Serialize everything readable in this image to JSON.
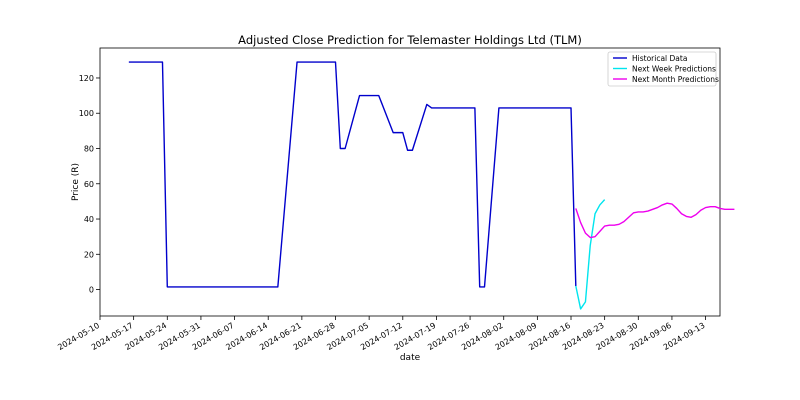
{
  "chart_data": {
    "type": "line",
    "title": "Adjusted Close Prediction for Telemaster Holdings Ltd (TLM)",
    "xlabel": "date",
    "ylabel": "Price (R)",
    "xlim": [
      "2024-05-10",
      "2024-09-16"
    ],
    "ylim": [
      -15,
      137
    ],
    "grid": false,
    "legend_position": "top-right",
    "x_ticks": [
      "2024-05-10",
      "2024-05-17",
      "2024-05-24",
      "2024-05-31",
      "2024-06-07",
      "2024-06-14",
      "2024-06-21",
      "2024-06-28",
      "2024-07-05",
      "2024-07-12",
      "2024-07-19",
      "2024-07-26",
      "2024-08-02",
      "2024-08-09",
      "2024-08-16",
      "2024-08-23",
      "2024-08-30",
      "2024-09-06",
      "2024-09-13"
    ],
    "y_ticks": [
      0,
      20,
      40,
      60,
      80,
      100,
      120
    ],
    "series": [
      {
        "name": "Historical Data",
        "color": "#0000cc",
        "points": [
          {
            "x": "2024-05-16",
            "y": 129
          },
          {
            "x": "2024-05-23",
            "y": 129
          },
          {
            "x": "2024-05-24",
            "y": 1.5
          },
          {
            "x": "2024-06-16",
            "y": 1.5
          },
          {
            "x": "2024-06-20",
            "y": 129
          },
          {
            "x": "2024-06-28",
            "y": 129
          },
          {
            "x": "2024-06-29",
            "y": 80
          },
          {
            "x": "2024-06-30",
            "y": 80
          },
          {
            "x": "2024-07-03",
            "y": 110
          },
          {
            "x": "2024-07-07",
            "y": 110
          },
          {
            "x": "2024-07-10",
            "y": 89
          },
          {
            "x": "2024-07-12",
            "y": 89
          },
          {
            "x": "2024-07-13",
            "y": 79
          },
          {
            "x": "2024-07-14",
            "y": 79
          },
          {
            "x": "2024-07-17",
            "y": 105
          },
          {
            "x": "2024-07-18",
            "y": 103
          },
          {
            "x": "2024-07-27",
            "y": 103
          },
          {
            "x": "2024-07-28",
            "y": 1.5
          },
          {
            "x": "2024-07-29",
            "y": 1.5
          },
          {
            "x": "2024-08-01",
            "y": 103
          },
          {
            "x": "2024-08-16",
            "y": 103
          },
          {
            "x": "2024-08-17",
            "y": 2
          }
        ]
      },
      {
        "name": "Next Week Predictions",
        "color": "#00e5ee",
        "points": [
          {
            "x": "2024-08-17",
            "y": 2
          },
          {
            "x": "2024-08-18",
            "y": -11
          },
          {
            "x": "2024-08-19",
            "y": -7
          },
          {
            "x": "2024-08-20",
            "y": 25
          },
          {
            "x": "2024-08-21",
            "y": 43
          },
          {
            "x": "2024-08-22",
            "y": 48
          },
          {
            "x": "2024-08-23",
            "y": 51
          }
        ]
      },
      {
        "name": "Next Month Predictions",
        "color": "#ee00ee",
        "points": [
          {
            "x": "2024-08-17",
            "y": 46
          },
          {
            "x": "2024-08-18",
            "y": 38
          },
          {
            "x": "2024-08-19",
            "y": 32
          },
          {
            "x": "2024-08-20",
            "y": 29.5
          },
          {
            "x": "2024-08-21",
            "y": 30
          },
          {
            "x": "2024-08-22",
            "y": 33
          },
          {
            "x": "2024-08-23",
            "y": 36
          },
          {
            "x": "2024-08-24",
            "y": 36.5
          },
          {
            "x": "2024-08-25",
            "y": 36.5
          },
          {
            "x": "2024-08-26",
            "y": 37
          },
          {
            "x": "2024-08-27",
            "y": 38.5
          },
          {
            "x": "2024-08-28",
            "y": 41
          },
          {
            "x": "2024-08-29",
            "y": 43.5
          },
          {
            "x": "2024-08-30",
            "y": 44
          },
          {
            "x": "2024-08-31",
            "y": 44
          },
          {
            "x": "2024-09-01",
            "y": 44.5
          },
          {
            "x": "2024-09-02",
            "y": 45.5
          },
          {
            "x": "2024-09-03",
            "y": 46.5
          },
          {
            "x": "2024-09-04",
            "y": 48
          },
          {
            "x": "2024-09-05",
            "y": 49
          },
          {
            "x": "2024-09-06",
            "y": 48.5
          },
          {
            "x": "2024-09-07",
            "y": 46
          },
          {
            "x": "2024-09-08",
            "y": 43
          },
          {
            "x": "2024-09-09",
            "y": 41.5
          },
          {
            "x": "2024-09-10",
            "y": 41
          },
          {
            "x": "2024-09-11",
            "y": 42.5
          },
          {
            "x": "2024-09-12",
            "y": 45
          },
          {
            "x": "2024-09-13",
            "y": 46.5
          },
          {
            "x": "2024-09-14",
            "y": 47
          },
          {
            "x": "2024-09-15",
            "y": 47
          },
          {
            "x": "2024-09-16",
            "y": 46
          },
          {
            "x": "2024-09-17",
            "y": 45.5
          },
          {
            "x": "2024-09-18",
            "y": 45.5
          },
          {
            "x": "2024-09-19",
            "y": 45.5
          }
        ]
      }
    ]
  }
}
